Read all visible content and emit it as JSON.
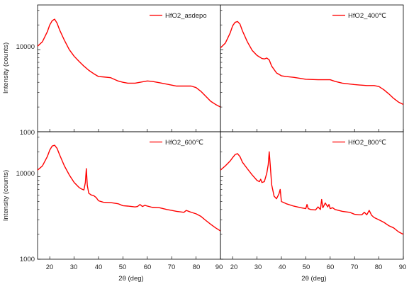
{
  "chart_data": {
    "type": "line",
    "xlabel": "2θ (deg)",
    "ylabel": "Intensity (counts)",
    "xlim": [
      15,
      90
    ],
    "ylim": [
      1000,
      35000
    ],
    "yscale": "log",
    "x_ticks": [
      "20",
      "30",
      "40",
      "50",
      "60",
      "70",
      "80",
      "90"
    ],
    "x_ticks_left_last": "90",
    "y_ticks": [
      "10000",
      "1000"
    ],
    "line_color": "#ff0000",
    "legend_placement": "top-right",
    "panels": [
      {
        "series_name": "HfO2_asdepo",
        "x": [
          15,
          17,
          19,
          20,
          21,
          22,
          23,
          24,
          26,
          28,
          30,
          32,
          34,
          36,
          38,
          40,
          42,
          45,
          48,
          50,
          52,
          55,
          58,
          60,
          62,
          65,
          68,
          70,
          72,
          75,
          78,
          80,
          82,
          84,
          86,
          88,
          90
        ],
        "y": [
          11000,
          12500,
          16500,
          20000,
          22500,
          23500,
          21000,
          17500,
          13000,
          10000,
          8300,
          7200,
          6300,
          5600,
          5100,
          4700,
          4650,
          4550,
          4150,
          4000,
          3900,
          3900,
          4050,
          4150,
          4100,
          3950,
          3800,
          3700,
          3600,
          3600,
          3600,
          3450,
          3100,
          2700,
          2350,
          2150,
          2000
        ]
      },
      {
        "series_name": "HfO2_400℃",
        "x": [
          15,
          17,
          19,
          20,
          21,
          22,
          23,
          24,
          26,
          28,
          30,
          32,
          33,
          34,
          35,
          36,
          38,
          40,
          42,
          45,
          48,
          50,
          55,
          60,
          62,
          65,
          70,
          75,
          78,
          80,
          82,
          84,
          86,
          88,
          90
        ],
        "y": [
          10500,
          12000,
          16000,
          19500,
          21500,
          22000,
          20500,
          17000,
          12500,
          9800,
          8500,
          7800,
          7700,
          7900,
          7500,
          6300,
          5200,
          4800,
          4700,
          4600,
          4450,
          4350,
          4300,
          4300,
          4100,
          3900,
          3750,
          3650,
          3650,
          3550,
          3250,
          2900,
          2550,
          2300,
          2150
        ]
      },
      {
        "series_name": "HfO2_600℃",
        "x": [
          15,
          17,
          19,
          20,
          21,
          22,
          23,
          24,
          26,
          28,
          30,
          32,
          33,
          34,
          34.6,
          35,
          35.4,
          36,
          37,
          38,
          39,
          40,
          42,
          45,
          48,
          50,
          52,
          55,
          56,
          57,
          58,
          59,
          60,
          62,
          65,
          68,
          70,
          72,
          75,
          76,
          77,
          78,
          80,
          82,
          84,
          86,
          88,
          90
        ],
        "y": [
          12000,
          13500,
          17500,
          21000,
          23500,
          24000,
          22000,
          18500,
          13500,
          10500,
          8500,
          7400,
          7100,
          6900,
          8500,
          12500,
          7800,
          6300,
          6000,
          5900,
          5600,
          5100,
          4900,
          4850,
          4700,
          4450,
          4400,
          4300,
          4350,
          4600,
          4350,
          4500,
          4400,
          4250,
          4200,
          4000,
          3900,
          3800,
          3700,
          3900,
          3800,
          3700,
          3550,
          3300,
          2950,
          2650,
          2400,
          2200
        ]
      },
      {
        "series_name": "HfO2_800℃",
        "x": [
          15,
          17,
          19,
          20,
          21,
          22,
          23,
          24,
          26,
          28,
          30,
          31,
          31.5,
          32,
          33,
          34,
          34.6,
          35,
          35.4,
          36,
          37,
          38,
          39,
          39.5,
          40,
          42,
          45,
          48,
          50,
          50.5,
          51,
          52,
          54,
          55,
          56,
          56.5,
          57,
          58,
          59,
          59.5,
          60,
          61,
          62,
          65,
          68,
          70,
          72,
          73,
          74,
          75,
          76,
          77,
          78,
          80,
          82,
          84,
          86,
          88,
          90
        ],
        "y": [
          12000,
          13500,
          15500,
          17000,
          18500,
          19000,
          17500,
          15000,
          12500,
          10500,
          9000,
          8700,
          9300,
          8500,
          8700,
          11000,
          14000,
          20000,
          14000,
          8000,
          5800,
          5400,
          6200,
          7000,
          5000,
          4700,
          4400,
          4200,
          4100,
          4600,
          4100,
          4000,
          3950,
          4300,
          4000,
          5300,
          4200,
          4800,
          4300,
          4600,
          4100,
          4200,
          4000,
          3800,
          3700,
          3500,
          3450,
          3450,
          3700,
          3450,
          3900,
          3400,
          3200,
          3000,
          2800,
          2550,
          2400,
          2150,
          2000
        ]
      }
    ]
  }
}
